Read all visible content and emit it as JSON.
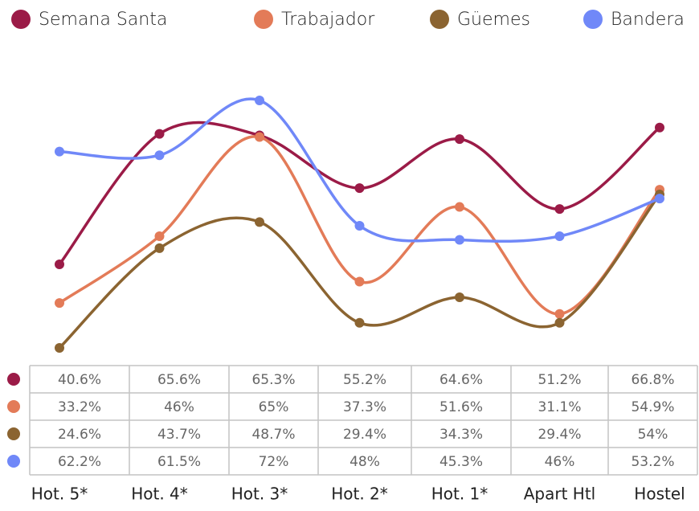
{
  "chart_data": {
    "type": "line",
    "categories": [
      "Hot. 5*",
      "Hot. 4*",
      "Hot. 3*",
      "Hot. 2*",
      "Hot. 1*",
      "Apart Htl",
      "Hostel"
    ],
    "series": [
      {
        "name": "Semana Santa",
        "color": "#9b1b47",
        "values": [
          40.6,
          65.6,
          65.3,
          55.2,
          64.6,
          51.2,
          66.8
        ],
        "value_labels": [
          "40.6%",
          "65.6%",
          "65.3%",
          "55.2%",
          "64.6%",
          "51.2%",
          "66.8%"
        ]
      },
      {
        "name": "Trabajador",
        "color": "#e37b58",
        "values": [
          33.2,
          46,
          65,
          37.3,
          51.6,
          31.1,
          54.9
        ],
        "value_labels": [
          "33.2%",
          "46%",
          "65%",
          "37.3%",
          "51.6%",
          "31.1%",
          "54.9%"
        ]
      },
      {
        "name": "Güemes",
        "color": "#8b6431",
        "values": [
          24.6,
          43.7,
          48.7,
          29.4,
          34.3,
          29.4,
          54
        ],
        "value_labels": [
          "24.6%",
          "43.7%",
          "48.7%",
          "29.4%",
          "34.3%",
          "29.4%",
          "54%"
        ]
      },
      {
        "name": "Bandera",
        "color": "#7088f8",
        "values": [
          62.2,
          61.5,
          72,
          48,
          45.3,
          46,
          53.2
        ],
        "value_labels": [
          "62.2%",
          "61.5%",
          "72%",
          "48%",
          "45.3%",
          "46%",
          "53.2%"
        ]
      }
    ]
  }
}
